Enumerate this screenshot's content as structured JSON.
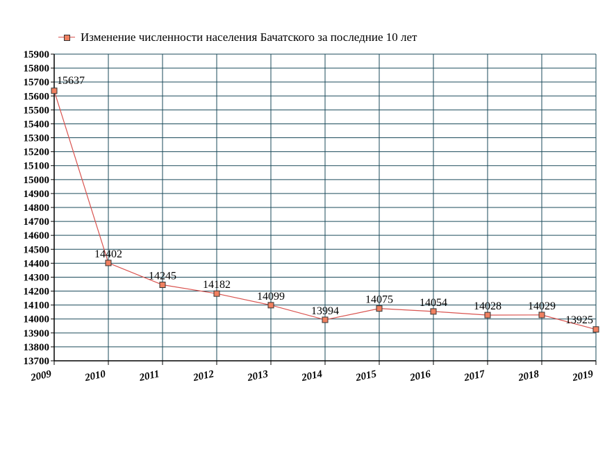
{
  "chart_data": {
    "type": "line",
    "categories": [
      "2009",
      "2010",
      "2011",
      "2012",
      "2013",
      "2014",
      "2015",
      "2016",
      "2017",
      "2018",
      "2019"
    ],
    "series": [
      {
        "name": "Изменение численности населения Бачатского за последние 10 лет",
        "values": [
          15637,
          14402,
          14245,
          14182,
          14099,
          13994,
          14075,
          14054,
          14028,
          14029,
          13925
        ]
      }
    ],
    "ylim": [
      13700,
      15900
    ],
    "ytick_step": 100,
    "grid": true,
    "legend_position": "top",
    "colors": {
      "line": "#d9534f",
      "marker_fill": "#f08060",
      "marker_stroke": "#333333",
      "grid": "#1a4a5a",
      "axis": "#000000"
    }
  }
}
